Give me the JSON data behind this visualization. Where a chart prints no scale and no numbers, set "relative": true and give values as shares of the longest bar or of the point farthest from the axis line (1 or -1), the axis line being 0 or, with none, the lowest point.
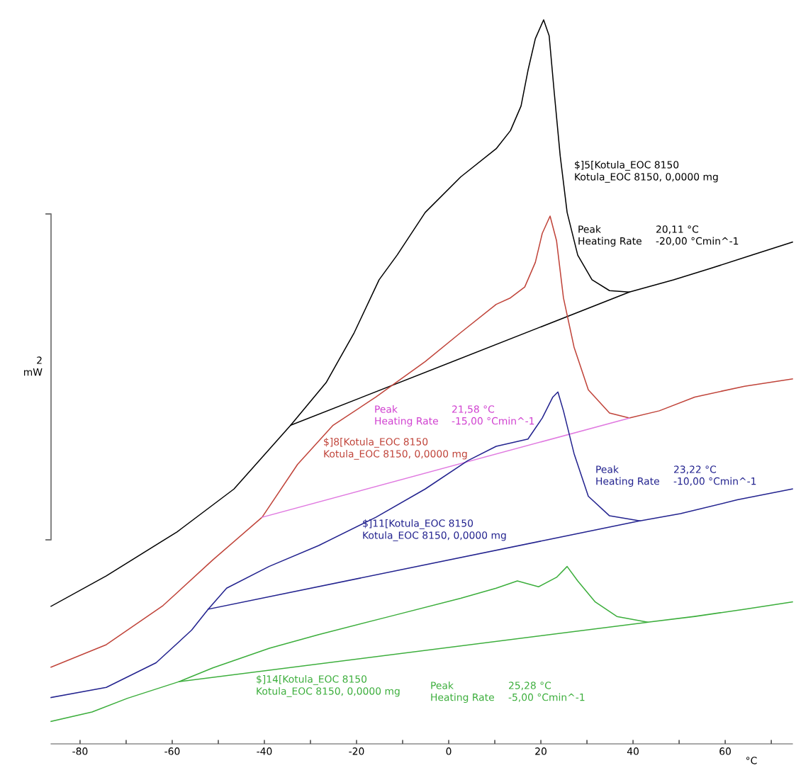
{
  "chart_data": {
    "type": "line",
    "relative": true,
    "xlabel": "°C",
    "xlim": [
      -86.3,
      74.6
    ],
    "xticks": [
      -80,
      {
        "value": -70,
        "label": null
      },
      -60,
      {
        "value": -50,
        "label": null
      },
      -40,
      {
        "value": -30,
        "label": null
      },
      -20,
      {
        "value": -10,
        "label": null
      },
      0,
      {
        "value": 10,
        "label": null
      },
      20,
      {
        "value": 30,
        "label": null
      },
      40,
      {
        "value": 50,
        "label": null
      },
      60,
      {
        "value": 70,
        "label": null
      }
    ],
    "grid": false,
    "legend": false,
    "marker": "none",
    "line_style": "solid",
    "series": [
      {
        "name": "$]5[Kotula_EOC 8150\nKotula_EOC 8150, 0,0000 mg",
        "color": "#000000",
        "x": [
          -86.3,
          -74.3,
          -58.9,
          -46.6,
          -34.3,
          -26.6,
          -20.5,
          -15.1,
          -11.2,
          -5.1,
          2.6,
          10.3,
          13.4,
          15.7,
          17.2,
          18.8,
          20.6,
          21.8,
          22.9,
          24.2,
          25.7,
          28.0,
          31.1,
          34.9,
          39.2,
          48.8,
          56.5,
          65.7,
          74.6
        ],
        "values": [
          0.19,
          0.232,
          0.293,
          0.352,
          0.44,
          0.499,
          0.568,
          0.641,
          0.675,
          0.734,
          0.783,
          0.822,
          0.847,
          0.881,
          0.93,
          0.974,
          1.0,
          0.978,
          0.9,
          0.812,
          0.734,
          0.675,
          0.641,
          0.626,
          0.624,
          0.641,
          0.656,
          0.675,
          0.693
        ]
      },
      {
        "color": "#000000",
        "x": [
          -34.3,
          39.2
        ],
        "values": [
          0.44,
          0.624
        ]
      },
      {
        "name": "$]8[Kotula_EOC 8150\nKotula_EOC 8150, 0,0000 mg",
        "color": "#c0443a",
        "x": [
          -86.3,
          -74.3,
          -62.0,
          -51.2,
          -40.5,
          -32.8,
          -25.1,
          -15.8,
          -5.1,
          2.6,
          10.3,
          13.4,
          16.5,
          18.8,
          20.3,
          22.0,
          23.4,
          24.9,
          27.2,
          30.3,
          34.9,
          39.2,
          45.7,
          53.4,
          64.2,
          74.6
        ],
        "values": [
          0.106,
          0.137,
          0.191,
          0.254,
          0.313,
          0.386,
          0.44,
          0.479,
          0.528,
          0.568,
          0.607,
          0.616,
          0.631,
          0.665,
          0.705,
          0.729,
          0.695,
          0.616,
          0.548,
          0.489,
          0.457,
          0.45,
          0.46,
          0.479,
          0.494,
          0.504
        ]
      },
      {
        "color": "#e07ae0",
        "x": [
          -40.5,
          39.2
        ],
        "values": [
          0.313,
          0.45
        ]
      },
      {
        "name": "$]11[Kotula_EOC 8150\nKotula_EOC 8150, 0,0000 mg",
        "color": "#23238f",
        "x": [
          -86.3,
          -74.3,
          -63.5,
          -55.8,
          -52.2,
          -48.2,
          -39.0,
          -28.2,
          -15.8,
          -5.1,
          4.1,
          10.3,
          17.2,
          20.3,
          22.6,
          23.7,
          24.9,
          27.2,
          30.3,
          34.9,
          41.5,
          50.3,
          62.6,
          74.6
        ],
        "values": [
          0.064,
          0.078,
          0.112,
          0.157,
          0.186,
          0.215,
          0.245,
          0.274,
          0.313,
          0.352,
          0.391,
          0.411,
          0.421,
          0.45,
          0.479,
          0.486,
          0.46,
          0.401,
          0.342,
          0.315,
          0.308,
          0.318,
          0.337,
          0.352
        ]
      },
      {
        "color": "#23238f",
        "x": [
          -52.2,
          41.5
        ],
        "values": [
          0.186,
          0.308
        ]
      },
      {
        "name": "$]14[Kotula_EOC 8150\nKotula_EOC 8150, 0,0000 mg",
        "color": "#3cae3c",
        "x": [
          -86.3,
          -77.4,
          -69.7,
          -58.5,
          -51.2,
          -38.9,
          -28.2,
          -12.8,
          2.6,
          10.3,
          14.9,
          19.5,
          23.4,
          25.7,
          28.0,
          31.8,
          36.5,
          43.2,
          53.4,
          64.2,
          74.6
        ],
        "values": [
          0.031,
          0.044,
          0.063,
          0.086,
          0.105,
          0.132,
          0.151,
          0.176,
          0.201,
          0.215,
          0.225,
          0.217,
          0.23,
          0.245,
          0.225,
          0.196,
          0.176,
          0.168,
          0.176,
          0.186,
          0.196
        ]
      },
      {
        "color": "#3cae3c",
        "x": [
          -58.5,
          43.2
        ],
        "values": [
          0.086,
          0.168
        ]
      }
    ],
    "annotations": [
      "Peak\nHeating Rate",
      "20,11 °C\n-20,00 °Cmin^-1",
      "Peak\nHeating Rate",
      "21,58 °C\n-15,00 °Cmin^-1",
      "Peak\nHeating Rate",
      "23,22 °C\n-10,00 °Cmin^-1",
      "Peak\nHeating Rate",
      "25,28 °C\n-5,00 °Cmin^-1",
      "2\nmW"
    ]
  }
}
